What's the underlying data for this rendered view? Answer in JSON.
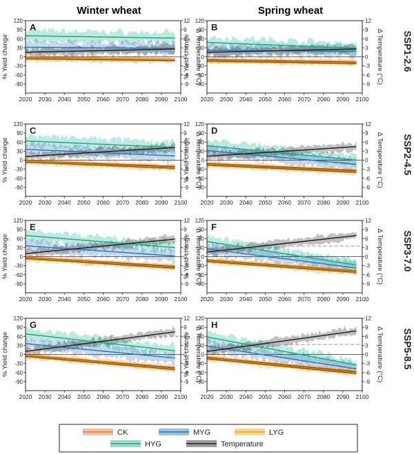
{
  "columns": [
    "Winter wheat",
    "Spring wheat"
  ],
  "rows": [
    "SSP1-2.6",
    "SSP2-4.5",
    "SSP3-7.0",
    "SSP5-8.5"
  ],
  "axes": {
    "ylabel_left": "% Yield change",
    "ylabel_right": "Δ Temperature (°C)",
    "x_ticks": [
      "2020",
      "2030",
      "2040",
      "2050",
      "2060",
      "2070",
      "2080",
      "2090",
      "2100"
    ],
    "y_ticks_left": [
      "120",
      "90",
      "60",
      "30",
      "0",
      "-30",
      "-60",
      "-90"
    ],
    "y_ticks_right": [
      "12",
      "9",
      "6",
      "3",
      "0",
      "-3",
      "-6",
      "-9"
    ]
  },
  "legend": {
    "items": [
      {
        "label": "CK",
        "color": "#e07b39"
      },
      {
        "label": "MYG",
        "color": "#1f77b4"
      },
      {
        "label": "LYG",
        "color": "#e6a817"
      },
      {
        "label": "HYG",
        "color": "#1aab8a"
      },
      {
        "label": "Temperature",
        "color": "#222222"
      }
    ]
  },
  "colors": {
    "CK": "#e07b39",
    "MYG": "#2a7ab9",
    "LYG": "#e6a817",
    "HYG": "#1aab8a",
    "Temperature": "#222222",
    "reference": "#c48a9a"
  },
  "chart_data": [
    {
      "panel": "A",
      "type": "line",
      "x": [
        2020,
        2097
      ],
      "xlim": [
        2020,
        2100
      ],
      "ylim": [
        -120,
        120
      ],
      "y2lim": [
        -12,
        12
      ],
      "series": [
        {
          "name": "HYG",
          "values": [
            70,
            62
          ]
        },
        {
          "name": "MYG",
          "values": [
            32,
            28
          ]
        },
        {
          "name": "CK",
          "values": [
            -3,
            -10
          ]
        },
        {
          "name": "LYG",
          "values": [
            -6,
            -12
          ]
        },
        {
          "name": "Temperature",
          "axis": "right",
          "values": [
            1.5,
            2.6
          ]
        }
      ]
    },
    {
      "panel": "B",
      "type": "line",
      "x": [
        2020,
        2097
      ],
      "xlim": [
        2020,
        2100
      ],
      "ylim": [
        -120,
        120
      ],
      "y2lim": [
        -12,
        12
      ],
      "series": [
        {
          "name": "HYG",
          "values": [
            48,
            28
          ]
        },
        {
          "name": "MYG",
          "values": [
            22,
            18
          ]
        },
        {
          "name": "CK",
          "values": [
            -10,
            -18
          ]
        },
        {
          "name": "LYG",
          "values": [
            -14,
            -22
          ]
        },
        {
          "name": "Temperature",
          "axis": "right",
          "values": [
            1.5,
            2.6
          ]
        }
      ]
    },
    {
      "panel": "C",
      "type": "line",
      "x": [
        2020,
        2097
      ],
      "xlim": [
        2020,
        2100
      ],
      "ylim": [
        -120,
        120
      ],
      "y2lim": [
        -12,
        12
      ],
      "series": [
        {
          "name": "HYG",
          "values": [
            64,
            42
          ]
        },
        {
          "name": "MYG",
          "values": [
            36,
            14
          ]
        },
        {
          "name": "CK",
          "values": [
            -3,
            -22
          ]
        },
        {
          "name": "LYG",
          "values": [
            -6,
            -27
          ]
        },
        {
          "name": "Temperature",
          "axis": "right",
          "values": [
            1.2,
            4.2
          ]
        }
      ]
    },
    {
      "panel": "D",
      "type": "line",
      "x": [
        2020,
        2097
      ],
      "xlim": [
        2020,
        2100
      ],
      "ylim": [
        -120,
        120
      ],
      "y2lim": [
        -12,
        12
      ],
      "series": [
        {
          "name": "HYG",
          "values": [
            48,
            0
          ]
        },
        {
          "name": "MYG",
          "values": [
            32,
            -14
          ]
        },
        {
          "name": "CK",
          "values": [
            -12,
            -35
          ]
        },
        {
          "name": "LYG",
          "values": [
            -16,
            -40
          ]
        },
        {
          "name": "Temperature",
          "axis": "right",
          "values": [
            1.3,
            4.5
          ]
        }
      ]
    },
    {
      "panel": "E",
      "type": "line",
      "x": [
        2020,
        2097
      ],
      "xlim": [
        2020,
        2100
      ],
      "ylim": [
        -120,
        120
      ],
      "y2lim": [
        -12,
        12
      ],
      "series": [
        {
          "name": "HYG",
          "values": [
            70,
            30
          ]
        },
        {
          "name": "MYG",
          "values": [
            36,
            2
          ]
        },
        {
          "name": "CK",
          "values": [
            -3,
            -33
          ]
        },
        {
          "name": "LYG",
          "values": [
            -6,
            -38
          ]
        },
        {
          "name": "Temperature",
          "axis": "right",
          "values": [
            1.0,
            5.8
          ]
        }
      ]
    },
    {
      "panel": "F",
      "type": "line",
      "x": [
        2020,
        2097
      ],
      "xlim": [
        2020,
        2100
      ],
      "ylim": [
        -120,
        120
      ],
      "y2lim": [
        -12,
        12
      ],
      "series": [
        {
          "name": "HYG",
          "values": [
            50,
            -28
          ]
        },
        {
          "name": "MYG",
          "values": [
            26,
            -38
          ]
        },
        {
          "name": "CK",
          "values": [
            -12,
            -48
          ]
        },
        {
          "name": "LYG",
          "values": [
            -16,
            -52
          ]
        },
        {
          "name": "Temperature",
          "axis": "right",
          "values": [
            1.5,
            7.0
          ]
        }
      ],
      "reference": {
        "axis": "right",
        "value": 3.5,
        "from": 2060
      }
    },
    {
      "panel": "G",
      "type": "line",
      "x": [
        2020,
        2097
      ],
      "xlim": [
        2020,
        2100
      ],
      "ylim": [
        -120,
        120
      ],
      "y2lim": [
        -12,
        12
      ],
      "series": [
        {
          "name": "HYG",
          "values": [
            68,
            12
          ]
        },
        {
          "name": "MYG",
          "values": [
            36,
            -12
          ]
        },
        {
          "name": "CK",
          "values": [
            -3,
            -45
          ]
        },
        {
          "name": "LYG",
          "values": [
            -6,
            -50
          ]
        },
        {
          "name": "Temperature",
          "axis": "right",
          "values": [
            1.0,
            7.5
          ]
        }
      ],
      "reference": {
        "axis": "right",
        "value": 6.0,
        "from": 2080
      }
    },
    {
      "panel": "H",
      "type": "line",
      "x": [
        2020,
        2097
      ],
      "xlim": [
        2020,
        2100
      ],
      "ylim": [
        -120,
        120
      ],
      "y2lim": [
        -12,
        12
      ],
      "series": [
        {
          "name": "HYG",
          "values": [
            58,
            -35
          ]
        },
        {
          "name": "MYG",
          "values": [
            28,
            -48
          ]
        },
        {
          "name": "CK",
          "values": [
            -10,
            -58
          ]
        },
        {
          "name": "LYG",
          "values": [
            -14,
            -63
          ]
        },
        {
          "name": "Temperature",
          "axis": "right",
          "values": [
            1.0,
            7.8
          ]
        }
      ],
      "reference": {
        "axis": "right",
        "value": 3.3,
        "from": 2040
      }
    }
  ]
}
